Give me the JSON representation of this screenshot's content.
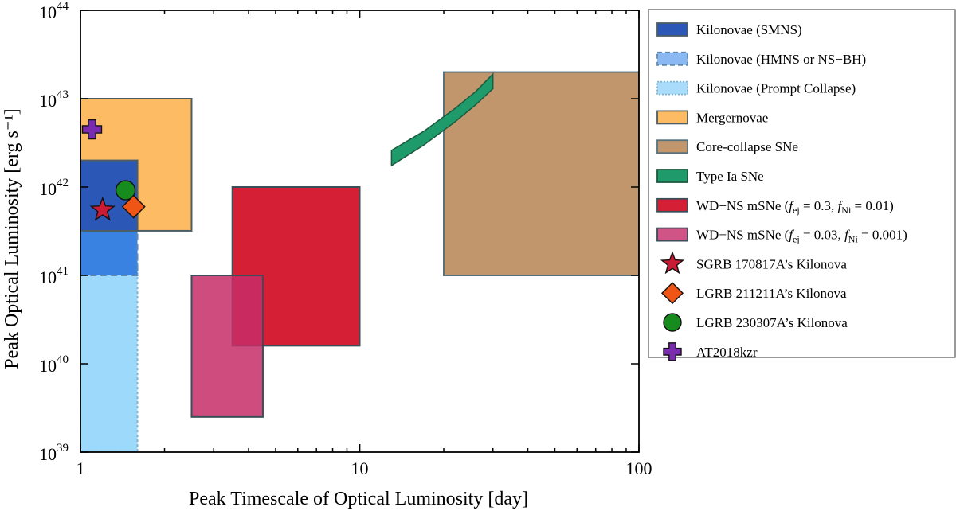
{
  "chart_data": {
    "type": "area",
    "xlabel": "Peak Timescale of Optical Luminosity [day]",
    "ylabel": "Peak Optical Luminosity [erg s⁻¹]",
    "xscale": "log",
    "yscale": "log",
    "xlim": [
      1,
      100
    ],
    "ylim": [
      1e+39,
      1e+44
    ],
    "xticks": [
      {
        "value": 1,
        "label": "1"
      },
      {
        "value": 10,
        "label": "10"
      },
      {
        "value": 100,
        "label": "100"
      }
    ],
    "yticks": [
      {
        "value": 1e+39,
        "base": "10",
        "exp": "39"
      },
      {
        "value": 1e+40,
        "base": "10",
        "exp": "40"
      },
      {
        "value": 1e+41,
        "base": "10",
        "exp": "41"
      },
      {
        "value": 1e+42,
        "base": "10",
        "exp": "42"
      },
      {
        "value": 1e+43,
        "base": "10",
        "exp": "43"
      },
      {
        "value": 1e+44,
        "base": "10",
        "exp": "44"
      }
    ],
    "legend_position": "outside-right",
    "regions": [
      {
        "id": "mergernovae",
        "label": "Mergernovae",
        "x": [
          1,
          2.5
        ],
        "y": [
          3.2e+41,
          1e+43
        ],
        "fill": "#fdbb63",
        "stroke": "#4d5d65",
        "dash": ""
      },
      {
        "id": "kn-prompt",
        "label": "Kilonovae (Prompt Collapse)",
        "x": [
          1,
          1.6
        ],
        "y": [
          1e+39,
          1.8e+41
        ],
        "fill": "#9dd9fb",
        "stroke": "#7fb3cf",
        "dash": "3,3"
      },
      {
        "id": "kn-hmns",
        "label": "Kilonovae (HMNS or NS−BH)",
        "x": [
          1,
          1.6
        ],
        "y": [
          1e+41,
          1e+42
        ],
        "fill": "#3a82e1",
        "stroke": "#5e8bb5",
        "dash": "8,5"
      },
      {
        "id": "kn-smns",
        "label": "Kilonovae (SMNS)",
        "x": [
          1,
          1.6
        ],
        "y": [
          3.2e+41,
          2e+42
        ],
        "fill": "#2b57b7",
        "stroke": "#4d5d65",
        "dash": ""
      },
      {
        "id": "ccsne",
        "label": "Core-collapse SNe",
        "x": [
          20,
          100
        ],
        "y": [
          1e+41,
          2e+43
        ],
        "fill": "#c2966c",
        "stroke": "#56717c",
        "dash": ""
      },
      {
        "id": "wdns-1",
        "label": "WD−NS mSNe",
        "x": [
          3.5,
          10
        ],
        "y": [
          1.6e+40,
          1e+42
        ],
        "fill": "#d41f35",
        "stroke": "#3a4e58",
        "dash": ""
      },
      {
        "id": "wdns-2",
        "label": "WD−NS mSNe",
        "x": [
          2.5,
          4.5
        ],
        "y": [
          2.5e+39,
          1e+41
        ],
        "fill": "#c72e67",
        "stroke": "#3a4e58",
        "dash": "",
        "opacity": 0.85
      }
    ],
    "band": {
      "id": "type-ia",
      "label": "Type Ia SNe",
      "x_range": [
        13,
        30
      ],
      "lower": [
        [
          13,
          1.75e+42
        ],
        [
          17,
          3e+42
        ],
        [
          22,
          5.5e+42
        ],
        [
          26,
          8.5e+42
        ],
        [
          30,
          1.3e+43
        ]
      ],
      "upper": [
        [
          13,
          2.6e+42
        ],
        [
          17,
          4.3e+42
        ],
        [
          22,
          7.8e+42
        ],
        [
          26,
          1.2e+43
        ],
        [
          30,
          1.9e+43
        ]
      ],
      "fill": "#1f9a6b",
      "stroke": "#1c5a40"
    },
    "points": [
      {
        "id": "at2018kzr",
        "label": "AT2018kzr",
        "x": 1.1,
        "y": 4.5e+42,
        "marker": "plus",
        "color": "#7a2bb0"
      },
      {
        "id": "sgrb170817a",
        "label": "SGRB 170817A’s Kilonova",
        "x": 1.2,
        "y": 5.5e+41,
        "marker": "star",
        "color": "#c91c34"
      },
      {
        "id": "lgrb230307a",
        "label": "LGRB 230307A’s Kilonova",
        "x": 1.45,
        "y": 9.2e+41,
        "marker": "circle",
        "color": "#168c1e"
      },
      {
        "id": "lgrb211211a",
        "label": "LGRB 211211A’s Kilonova",
        "x": 1.55,
        "y": 6e+41,
        "marker": "diamond",
        "color": "#ef5514"
      }
    ],
    "legend": [
      {
        "name": "legend-kilonovae-smns",
        "symbol": "rect",
        "fill": "#2b57b7",
        "stroke": "#4d5d65",
        "dash": "",
        "text": "Kilonovae (SMNS)"
      },
      {
        "name": "legend-kilonovae-hmns",
        "symbol": "rect",
        "fill": "#8ab8f2",
        "stroke": "#5e8bb5",
        "dash": "6,4",
        "text": "Kilonovae (HMNS or NS−BH)"
      },
      {
        "name": "legend-kilonovae-prompt",
        "symbol": "rect",
        "fill": "#a9dcfb",
        "stroke": "#7fb3cf",
        "dash": "2,2",
        "text": "Kilonovae (Prompt Collapse)"
      },
      {
        "name": "legend-mergernovae",
        "symbol": "rect",
        "fill": "#fdbb63",
        "stroke": "#4d5d65",
        "dash": "",
        "text": "Mergernovae"
      },
      {
        "name": "legend-ccsne",
        "symbol": "rect",
        "fill": "#c2966c",
        "stroke": "#56717c",
        "dash": "",
        "text": "Core-collapse SNe"
      },
      {
        "name": "legend-type-ia",
        "symbol": "rect",
        "fill": "#1f9a6b",
        "stroke": "#1c5a40",
        "dash": "",
        "text": "Type Ia SNe"
      },
      {
        "name": "legend-wdns-1",
        "symbol": "rect",
        "fill": "#d41f35",
        "stroke": "#3a4e58",
        "dash": "",
        "text": "WD−NS mSNe (f_ej = 0.3, f_Ni = 0.01)",
        "rich": [
          [
            "WD−NS mSNe (",
            ""
          ],
          [
            "f",
            "i"
          ],
          [
            "ej",
            "sub"
          ],
          [
            " = 0.3, ",
            ""
          ],
          [
            "f",
            "i"
          ],
          [
            "Ni",
            "sub"
          ],
          [
            " = 0.01)",
            ""
          ]
        ]
      },
      {
        "name": "legend-wdns-2",
        "symbol": "rect",
        "fill": "#d05486",
        "stroke": "#3a4e58",
        "dash": "",
        "text": "WD−NS mSNe (f_ej = 0.03, f_Ni = 0.001)",
        "rich": [
          [
            "WD−NS mSNe (",
            ""
          ],
          [
            "f",
            "i"
          ],
          [
            "ej",
            "sub"
          ],
          [
            " = 0.03, ",
            ""
          ],
          [
            "f",
            "i"
          ],
          [
            "Ni",
            "sub"
          ],
          [
            " = 0.001)",
            ""
          ]
        ]
      },
      {
        "name": "legend-sgrb170817a",
        "symbol": "star",
        "fill": "#c91c34",
        "text": "SGRB 170817A’s Kilonova"
      },
      {
        "name": "legend-lgrb211211a",
        "symbol": "diamond",
        "fill": "#ef5514",
        "text": "LGRB 211211A’s Kilonova"
      },
      {
        "name": "legend-lgrb230307a",
        "symbol": "circle",
        "fill": "#168c1e",
        "text": "LGRB 230307A’s Kilonova"
      },
      {
        "name": "legend-at2018kzr",
        "symbol": "plus",
        "fill": "#7a2bb0",
        "text": "AT2018kzr"
      }
    ]
  }
}
